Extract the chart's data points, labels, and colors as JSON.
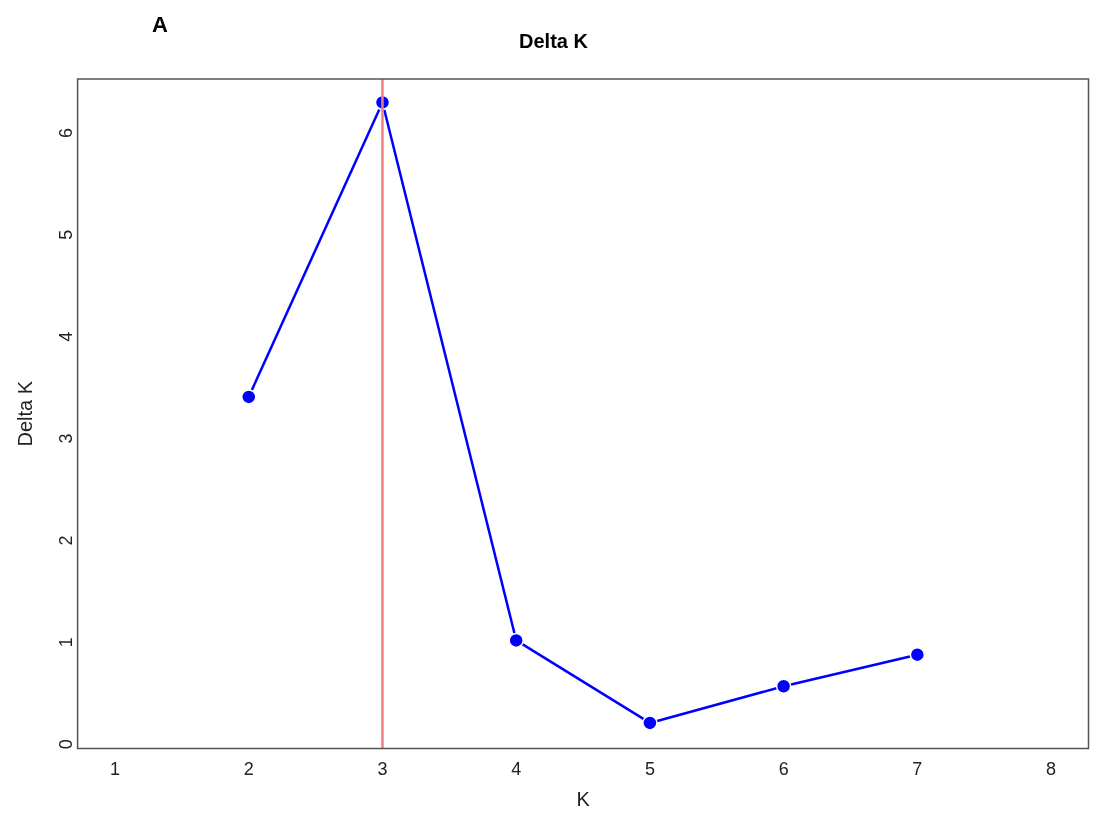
{
  "chart_data": {
    "type": "line",
    "title": "Delta K",
    "xlabel": "K",
    "ylabel": "Delta K",
    "annotations": [
      "A"
    ],
    "x": [
      2,
      3,
      4,
      5,
      6,
      7
    ],
    "series": [
      {
        "color": "#0000ff",
        "values": [
          3.36,
          6.25,
          0.97,
          0.16,
          0.52,
          0.83
        ]
      }
    ],
    "xlim": [
      0.72,
      8.28
    ],
    "xticks": [
      1,
      2,
      3,
      4,
      5,
      6,
      7,
      8
    ],
    "ylim": [
      -0.09,
      6.48
    ],
    "yticks": [
      0,
      1,
      2,
      3,
      4,
      5,
      6
    ],
    "ref_lines": [
      {
        "axis": "x",
        "value": 3,
        "color": "#f08080"
      }
    ],
    "marker": "circle",
    "line_style": "solid",
    "grid": false,
    "legend": false
  }
}
